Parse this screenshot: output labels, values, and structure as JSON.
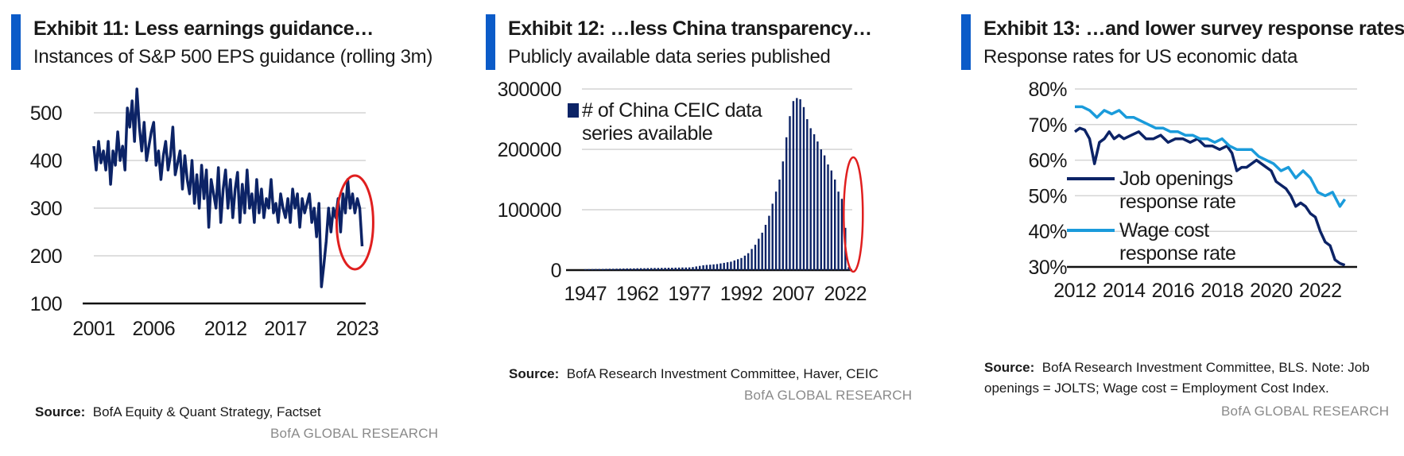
{
  "exhibits": [
    {
      "title": "Exhibit 11: Less earnings guidance…",
      "subtitle": "Instances of S&P 500 EPS guidance (rolling 3m)",
      "source_label": "Source:",
      "source_text": "BofA Equity & Quant Strategy, Factset",
      "brand": "BofA GLOBAL RESEARCH"
    },
    {
      "title": "Exhibit 12: …less China transparency…",
      "subtitle": "Publicly available data series published",
      "source_label": "Source:",
      "source_text": "BofA Research Investment Committee, Haver, CEIC",
      "brand": "BofA GLOBAL RESEARCH"
    },
    {
      "title": "Exhibit 13: …and lower survey response rates",
      "subtitle": "Response rates for US economic data",
      "source_label": "Source:",
      "source_text": "BofA Research Investment Committee, BLS. Note: Job openings = JOLTS; Wage cost = Employment Cost Index.",
      "brand": "BofA GLOBAL RESEARCH"
    }
  ],
  "colors": {
    "navy": "#0c2366",
    "light_blue": "#1a9bdb",
    "accent_bar": "#0b5bc8",
    "highlight_circle": "#e01f1f",
    "grid": "#d4d4d4"
  },
  "chart_data": [
    {
      "type": "line",
      "title": "",
      "xlabel": "",
      "ylabel": "",
      "xlim": [
        2001,
        2023.7
      ],
      "ylim": [
        100,
        550
      ],
      "x_ticks": [
        "2001",
        "2006",
        "2012",
        "2017",
        "2023"
      ],
      "x_tick_values": [
        2001,
        2006,
        2012,
        2017,
        2023
      ],
      "y_ticks": [
        100,
        200,
        300,
        400,
        500
      ],
      "grid": true,
      "highlight": "red-circle-recent-period",
      "series": [
        {
          "color": "#0c2366",
          "x": [
            2001.0,
            2001.2,
            2001.4,
            2001.6,
            2001.8,
            2002.0,
            2002.2,
            2002.4,
            2002.6,
            2002.8,
            2003.0,
            2003.2,
            2003.4,
            2003.6,
            2003.8,
            2004.0,
            2004.2,
            2004.4,
            2004.6,
            2004.8,
            2005.0,
            2005.2,
            2005.4,
            2005.6,
            2005.8,
            2006.0,
            2006.2,
            2006.4,
            2006.6,
            2006.8,
            2007.0,
            2007.2,
            2007.4,
            2007.6,
            2007.8,
            2008.0,
            2008.2,
            2008.4,
            2008.6,
            2008.8,
            2009.0,
            2009.2,
            2009.4,
            2009.6,
            2009.8,
            2010.0,
            2010.2,
            2010.4,
            2010.6,
            2010.8,
            2011.0,
            2011.2,
            2011.4,
            2011.6,
            2011.8,
            2012.0,
            2012.2,
            2012.4,
            2012.6,
            2012.8,
            2013.0,
            2013.2,
            2013.4,
            2013.6,
            2013.8,
            2014.0,
            2014.2,
            2014.4,
            2014.6,
            2014.8,
            2015.0,
            2015.2,
            2015.4,
            2015.6,
            2015.8,
            2016.0,
            2016.2,
            2016.4,
            2016.6,
            2016.8,
            2017.0,
            2017.2,
            2017.4,
            2017.6,
            2017.8,
            2018.0,
            2018.2,
            2018.4,
            2018.6,
            2018.8,
            2019.0,
            2019.2,
            2019.4,
            2019.6,
            2019.8,
            2020.0,
            2020.2,
            2020.4,
            2020.6,
            2020.8,
            2021.0,
            2021.2,
            2021.4,
            2021.6,
            2021.8,
            2022.0,
            2022.2,
            2022.4,
            2022.6,
            2022.8,
            2023.0,
            2023.2,
            2023.4
          ],
          "y": [
            430,
            380,
            440,
            395,
            420,
            380,
            440,
            350,
            420,
            390,
            460,
            400,
            430,
            380,
            510,
            470,
            525,
            440,
            550,
            470,
            420,
            480,
            400,
            430,
            460,
            480,
            390,
            420,
            360,
            410,
            440,
            380,
            410,
            470,
            370,
            395,
            420,
            340,
            410,
            360,
            330,
            400,
            310,
            370,
            300,
            390,
            320,
            380,
            260,
            360,
            330,
            300,
            385,
            270,
            340,
            380,
            300,
            360,
            280,
            340,
            375,
            270,
            350,
            290,
            380,
            300,
            330,
            270,
            360,
            290,
            340,
            280,
            320,
            300,
            360,
            290,
            310,
            270,
            330,
            300,
            280,
            320,
            270,
            340,
            300,
            330,
            260,
            320,
            290,
            310,
            330,
            270,
            300,
            240,
            310,
            135,
            180,
            230,
            300,
            250,
            300,
            280,
            320,
            250,
            330,
            290,
            360,
            300,
            330,
            290,
            320,
            300,
            220
          ]
        }
      ]
    },
    {
      "type": "bar",
      "title": "",
      "xlabel": "",
      "ylabel": "",
      "xlim": [
        1946,
        2024
      ],
      "ylim": [
        0,
        300000
      ],
      "x_ticks": [
        "1947",
        "1962",
        "1977",
        "1992",
        "2007",
        "2022"
      ],
      "x_tick_values": [
        1947,
        1962,
        1977,
        1992,
        2007,
        2022
      ],
      "y_ticks": [
        0,
        100000,
        200000,
        300000
      ],
      "grid": true,
      "legend_position": "top-left",
      "highlight": "red-ellipse-latest-years",
      "series": [
        {
          "name": "# of China CEIC data series available",
          "color": "#0c2366",
          "x": [
            1947,
            1948,
            1949,
            1950,
            1951,
            1952,
            1953,
            1954,
            1955,
            1956,
            1957,
            1958,
            1959,
            1960,
            1961,
            1962,
            1963,
            1964,
            1965,
            1966,
            1967,
            1968,
            1969,
            1970,
            1971,
            1972,
            1973,
            1974,
            1975,
            1976,
            1977,
            1978,
            1979,
            1980,
            1981,
            1982,
            1983,
            1984,
            1985,
            1986,
            1987,
            1988,
            1989,
            1990,
            1991,
            1992,
            1993,
            1994,
            1995,
            1996,
            1997,
            1998,
            1999,
            2000,
            2001,
            2002,
            2003,
            2004,
            2005,
            2006,
            2007,
            2008,
            2009,
            2010,
            2011,
            2012,
            2013,
            2014,
            2015,
            2016,
            2017,
            2018,
            2019,
            2020,
            2021,
            2022,
            2023
          ],
          "values": [
            1500,
            1600,
            1700,
            1800,
            1900,
            2000,
            2100,
            2200,
            2300,
            2400,
            2500,
            2600,
            2700,
            2800,
            2900,
            3000,
            3100,
            3200,
            3300,
            3400,
            3500,
            3600,
            3700,
            3800,
            3900,
            4000,
            4100,
            4200,
            4300,
            4400,
            4500,
            5000,
            6000,
            7000,
            8000,
            8500,
            9000,
            9500,
            10000,
            11000,
            12000,
            13000,
            14000,
            16000,
            18000,
            20000,
            24000,
            28000,
            35000,
            42000,
            52000,
            62000,
            75000,
            90000,
            110000,
            130000,
            150000,
            180000,
            220000,
            255000,
            280000,
            285000,
            283000,
            270000,
            250000,
            235000,
            225000,
            213000,
            200000,
            190000,
            175000,
            165000,
            150000,
            130000,
            118000,
            70000,
            5000
          ]
        }
      ]
    },
    {
      "type": "line",
      "title": "",
      "xlabel": "",
      "ylabel": "",
      "xlim": [
        2012,
        2023.5
      ],
      "ylim": [
        30,
        80
      ],
      "x_ticks": [
        "2012",
        "2014",
        "2016",
        "2018",
        "2020",
        "2022"
      ],
      "x_tick_values": [
        2012,
        2014,
        2016,
        2018,
        2020,
        2022
      ],
      "y_ticks": [
        "30%",
        "40%",
        "50%",
        "60%",
        "70%",
        "80%"
      ],
      "y_tick_values": [
        30,
        40,
        50,
        60,
        70,
        80
      ],
      "grid": true,
      "legend_position": "left",
      "series": [
        {
          "name": "Job openings response rate",
          "color": "#0c2366",
          "x": [
            2012.0,
            2012.2,
            2012.4,
            2012.6,
            2012.8,
            2013.0,
            2013.2,
            2013.4,
            2013.6,
            2013.8,
            2014.0,
            2014.3,
            2014.6,
            2014.9,
            2015.2,
            2015.5,
            2015.8,
            2016.1,
            2016.4,
            2016.7,
            2017.0,
            2017.3,
            2017.6,
            2017.9,
            2018.2,
            2018.4,
            2018.6,
            2018.8,
            2019.0,
            2019.2,
            2019.4,
            2019.6,
            2019.8,
            2020.0,
            2020.2,
            2020.4,
            2020.6,
            2020.8,
            2021.0,
            2021.2,
            2021.4,
            2021.6,
            2021.8,
            2022.0,
            2022.2,
            2022.4,
            2022.6,
            2022.8,
            2023.0
          ],
          "y": [
            68,
            69,
            68.5,
            66,
            59,
            65,
            66,
            68,
            66,
            67,
            66,
            67,
            68,
            66,
            66,
            67,
            65,
            66,
            66,
            65,
            66,
            64,
            64,
            63,
            64,
            62,
            57,
            58,
            58,
            59,
            60,
            59,
            58,
            57,
            54,
            53,
            52,
            50,
            47,
            48,
            47,
            45,
            44,
            40,
            37,
            36,
            32,
            31,
            30.5
          ]
        },
        {
          "name": "Wage cost response rate",
          "color": "#1a9bdb",
          "x": [
            2012.0,
            2012.3,
            2012.6,
            2012.9,
            2013.2,
            2013.5,
            2013.8,
            2014.1,
            2014.4,
            2014.7,
            2015.0,
            2015.3,
            2015.6,
            2015.9,
            2016.2,
            2016.5,
            2016.8,
            2017.1,
            2017.4,
            2017.7,
            2018.0,
            2018.3,
            2018.6,
            2018.9,
            2019.2,
            2019.5,
            2019.8,
            2020.1,
            2020.4,
            2020.7,
            2021.0,
            2021.3,
            2021.6,
            2021.9,
            2022.2,
            2022.5,
            2022.8,
            2023.0
          ],
          "y": [
            75,
            75,
            74,
            72,
            74,
            73,
            74,
            72,
            72,
            71,
            70,
            69,
            69,
            68,
            68,
            67,
            67,
            66,
            66,
            65,
            66,
            64,
            63,
            63,
            63,
            61,
            60,
            59,
            57,
            58,
            55,
            57,
            55,
            51,
            50,
            51,
            47,
            49
          ]
        }
      ]
    }
  ]
}
